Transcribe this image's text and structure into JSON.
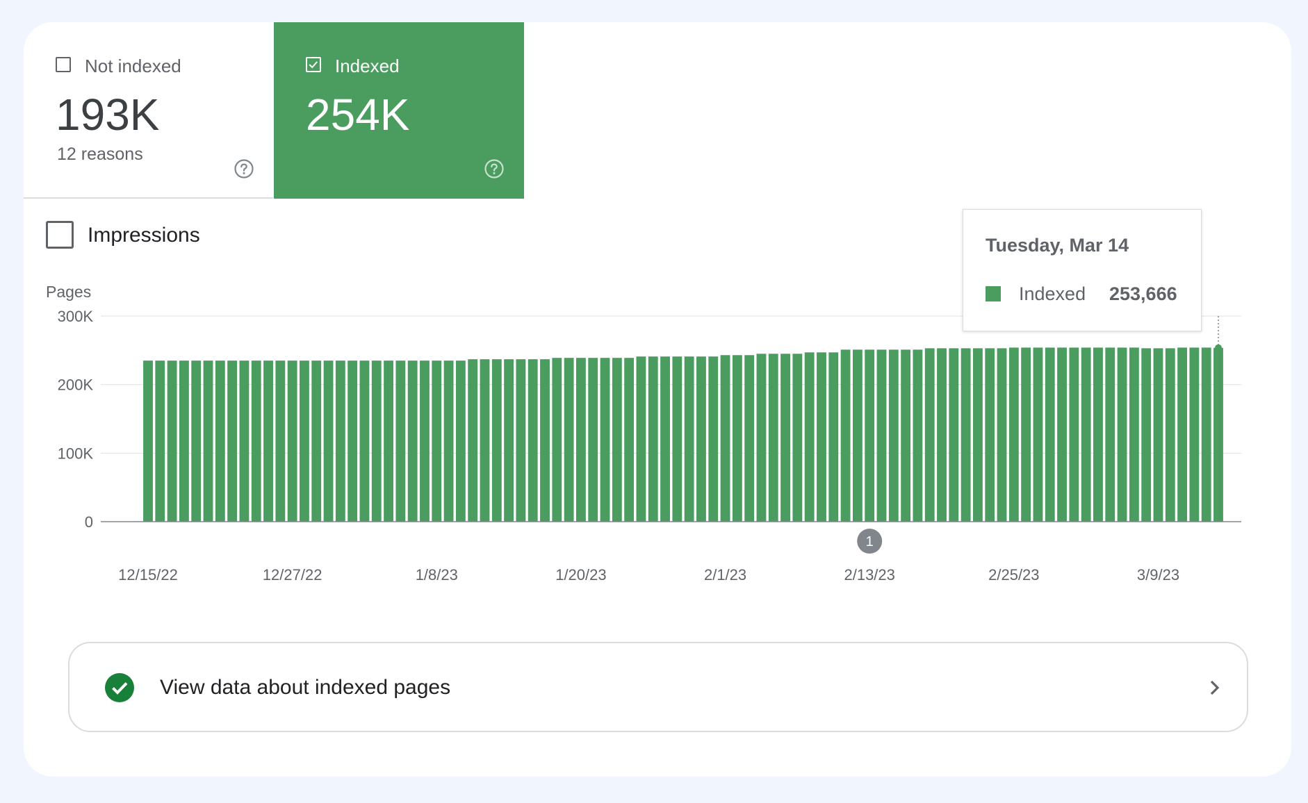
{
  "colors": {
    "accent": "#4a9d5f",
    "background": "#f1f5fd",
    "text": "#202124",
    "muted": "#5f6368",
    "grid": "#e0e0e0"
  },
  "tabs": {
    "not_indexed": {
      "label": "Not indexed",
      "value": "193K",
      "sub": "12 reasons",
      "checked": false,
      "icon": "help-icon"
    },
    "indexed": {
      "label": "Indexed",
      "value": "254K",
      "checked": true,
      "icon": "help-icon"
    }
  },
  "metric_toggle": {
    "label": "Impressions",
    "checked": false
  },
  "tooltip": {
    "date": "Tuesday, Mar 14",
    "series": "Indexed",
    "value": "253,666"
  },
  "annotation": {
    "label": "1",
    "date": "2/13/23"
  },
  "link": {
    "label": "View data about indexed pages",
    "icon": "check-circle-icon",
    "chevron": "chevron-right-icon"
  },
  "chart_data": {
    "type": "bar",
    "ylabel": "Pages",
    "ylim": [
      0,
      300000
    ],
    "yticks": [
      0,
      100000,
      200000,
      300000
    ],
    "ytick_labels": [
      "0",
      "100K",
      "200K",
      "300K"
    ],
    "xtick_labels": [
      "12/15/22",
      "12/27/22",
      "1/8/23",
      "1/20/23",
      "2/1/23",
      "2/13/23",
      "2/25/23",
      "3/9/23"
    ],
    "grid": true,
    "series": [
      {
        "name": "Indexed",
        "color": "#4a9d5f",
        "categories": [
          "12/15/22",
          "12/16/22",
          "12/17/22",
          "12/18/22",
          "12/19/22",
          "12/20/22",
          "12/21/22",
          "12/22/22",
          "12/23/22",
          "12/24/22",
          "12/25/22",
          "12/26/22",
          "12/27/22",
          "12/28/22",
          "12/29/22",
          "12/30/22",
          "12/31/22",
          "1/1/23",
          "1/2/23",
          "1/3/23",
          "1/4/23",
          "1/5/23",
          "1/6/23",
          "1/7/23",
          "1/8/23",
          "1/9/23",
          "1/10/23",
          "1/11/23",
          "1/12/23",
          "1/13/23",
          "1/14/23",
          "1/15/23",
          "1/16/23",
          "1/17/23",
          "1/18/23",
          "1/19/23",
          "1/20/23",
          "1/21/23",
          "1/22/23",
          "1/23/23",
          "1/24/23",
          "1/25/23",
          "1/26/23",
          "1/27/23",
          "1/28/23",
          "1/29/23",
          "1/30/23",
          "1/31/23",
          "2/1/23",
          "2/2/23",
          "2/3/23",
          "2/4/23",
          "2/5/23",
          "2/6/23",
          "2/7/23",
          "2/8/23",
          "2/9/23",
          "2/10/23",
          "2/11/23",
          "2/12/23",
          "2/13/23",
          "2/14/23",
          "2/15/23",
          "2/16/23",
          "2/17/23",
          "2/18/23",
          "2/19/23",
          "2/20/23",
          "2/21/23",
          "2/22/23",
          "2/23/23",
          "2/24/23",
          "2/25/23",
          "2/26/23",
          "2/27/23",
          "2/28/23",
          "3/1/23",
          "3/2/23",
          "3/3/23",
          "3/4/23",
          "3/5/23",
          "3/6/23",
          "3/7/23",
          "3/8/23",
          "3/9/23",
          "3/10/23",
          "3/11/23",
          "3/12/23",
          "3/13/23",
          "3/14/23"
        ],
        "values": [
          235000,
          235000,
          235000,
          235000,
          235000,
          235000,
          235000,
          235000,
          235000,
          235000,
          235000,
          235000,
          235000,
          235000,
          235000,
          235000,
          235000,
          235000,
          235000,
          235000,
          235000,
          235000,
          235000,
          235000,
          235000,
          235000,
          235000,
          237000,
          237000,
          237000,
          237000,
          237000,
          237000,
          237000,
          239000,
          239000,
          239000,
          239000,
          239000,
          239000,
          239000,
          241000,
          241000,
          241000,
          241000,
          241000,
          241000,
          241000,
          243000,
          243000,
          243000,
          245000,
          245000,
          245000,
          245000,
          247000,
          247000,
          247000,
          251000,
          251000,
          251000,
          251000,
          251000,
          251000,
          251000,
          253000,
          253000,
          253000,
          253000,
          253000,
          253000,
          253000,
          254000,
          254000,
          254000,
          254000,
          254000,
          254000,
          254000,
          254000,
          254000,
          254000,
          254000,
          253000,
          253000,
          253000,
          254000,
          254000,
          254000,
          253666
        ]
      }
    ],
    "highlight_index": 89
  }
}
